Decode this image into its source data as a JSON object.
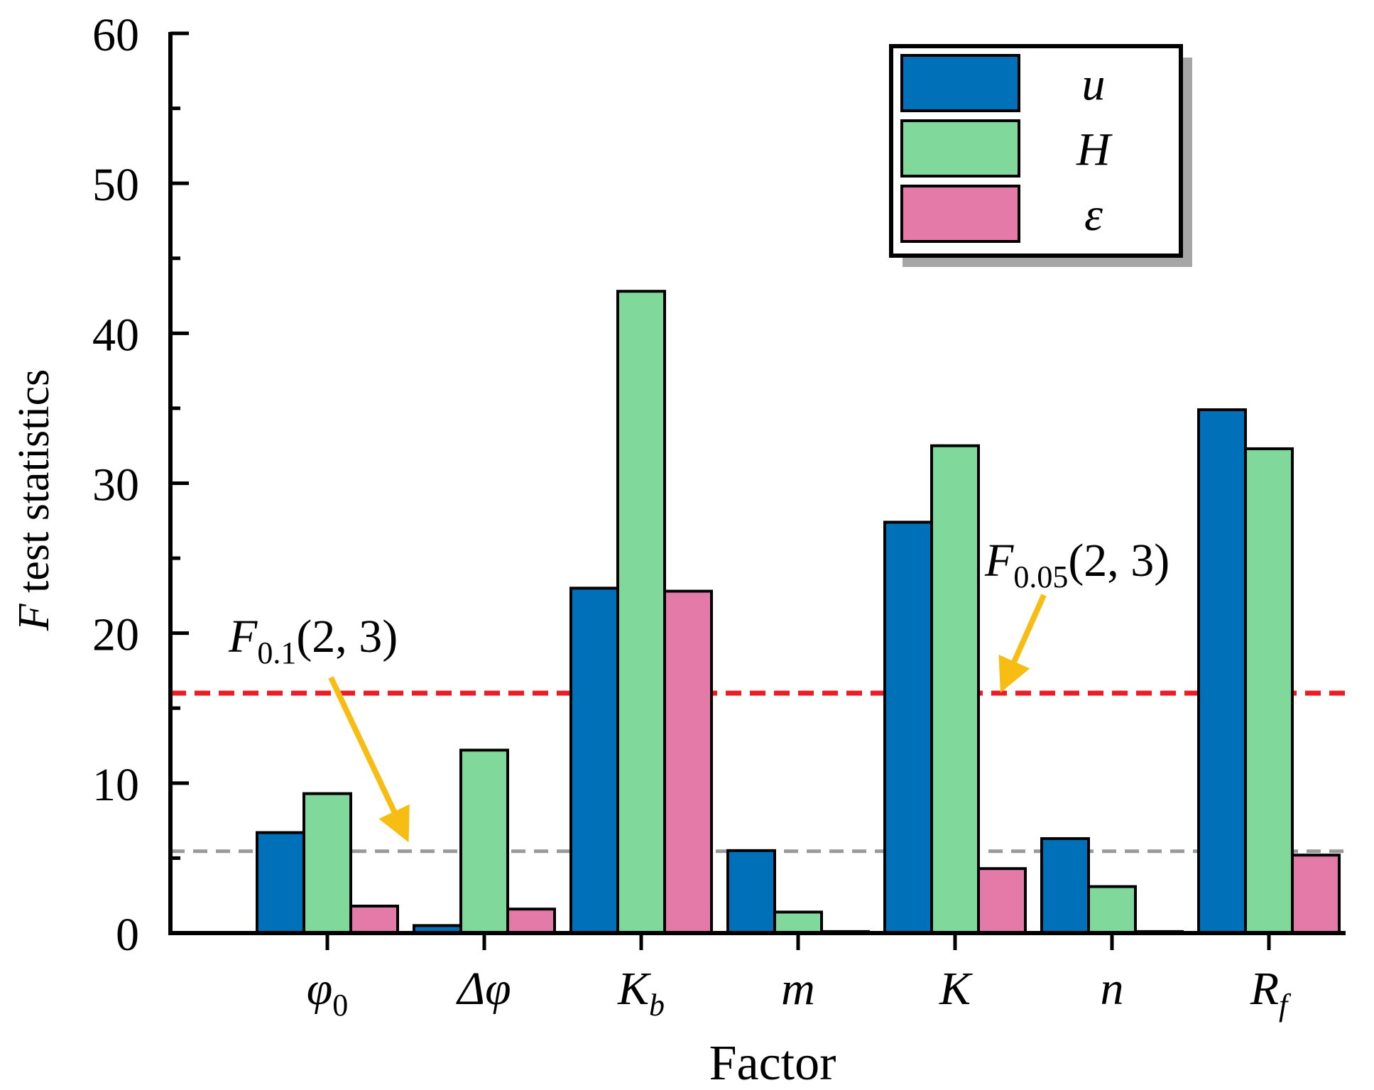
{
  "chart_data": {
    "type": "bar",
    "title": "",
    "xlabel": "Factor",
    "ylabel": {
      "var": "F",
      "rest": " test statistics"
    },
    "ylim": [
      0,
      60
    ],
    "yticks": [
      "0",
      "10",
      "20",
      "30",
      "40",
      "50",
      "60"
    ],
    "categories": [
      {
        "main": "φ",
        "sub": "0",
        "italic_main": true,
        "italic_sub": false
      },
      {
        "main": "Δφ",
        "sub": "",
        "italic_main": true,
        "italic_sub": false
      },
      {
        "main": "K",
        "sub": "b",
        "italic_main": true,
        "italic_sub": true
      },
      {
        "main": "m",
        "sub": "",
        "italic_main": true,
        "italic_sub": false
      },
      {
        "main": "K",
        "sub": "",
        "italic_main": true,
        "italic_sub": false
      },
      {
        "main": "n",
        "sub": "",
        "italic_main": true,
        "italic_sub": false
      },
      {
        "main": "R",
        "sub": "f",
        "italic_main": true,
        "italic_sub": true
      }
    ],
    "series": [
      {
        "name": "u",
        "color": "#0070b8",
        "values": [
          6.7,
          0.5,
          23.0,
          5.5,
          27.4,
          6.3,
          34.9
        ]
      },
      {
        "name": "H",
        "color": "#80d99b",
        "values": [
          9.3,
          12.2,
          42.8,
          1.4,
          32.5,
          3.1,
          32.3
        ]
      },
      {
        "name": "ε",
        "color": "#e47aa8",
        "values": [
          1.8,
          1.6,
          22.8,
          0.1,
          4.3,
          0.1,
          5.2
        ]
      }
    ],
    "legend": {
      "position": "top-right",
      "shadow": true
    },
    "reference_lines": [
      {
        "id": "f01",
        "value": 5.46,
        "color": "#999999",
        "style": "dashed",
        "label_main": "F",
        "label_sub": "0.1",
        "label_rest": "(2, 3)",
        "arrow_color": "#f7bd13"
      },
      {
        "id": "f005",
        "value": 16.0,
        "color": "#ee1c24",
        "style": "dashed",
        "label_main": "F",
        "label_sub": "0.05",
        "label_rest": "(2, 3)",
        "arrow_color": "#f7bd13"
      }
    ]
  }
}
